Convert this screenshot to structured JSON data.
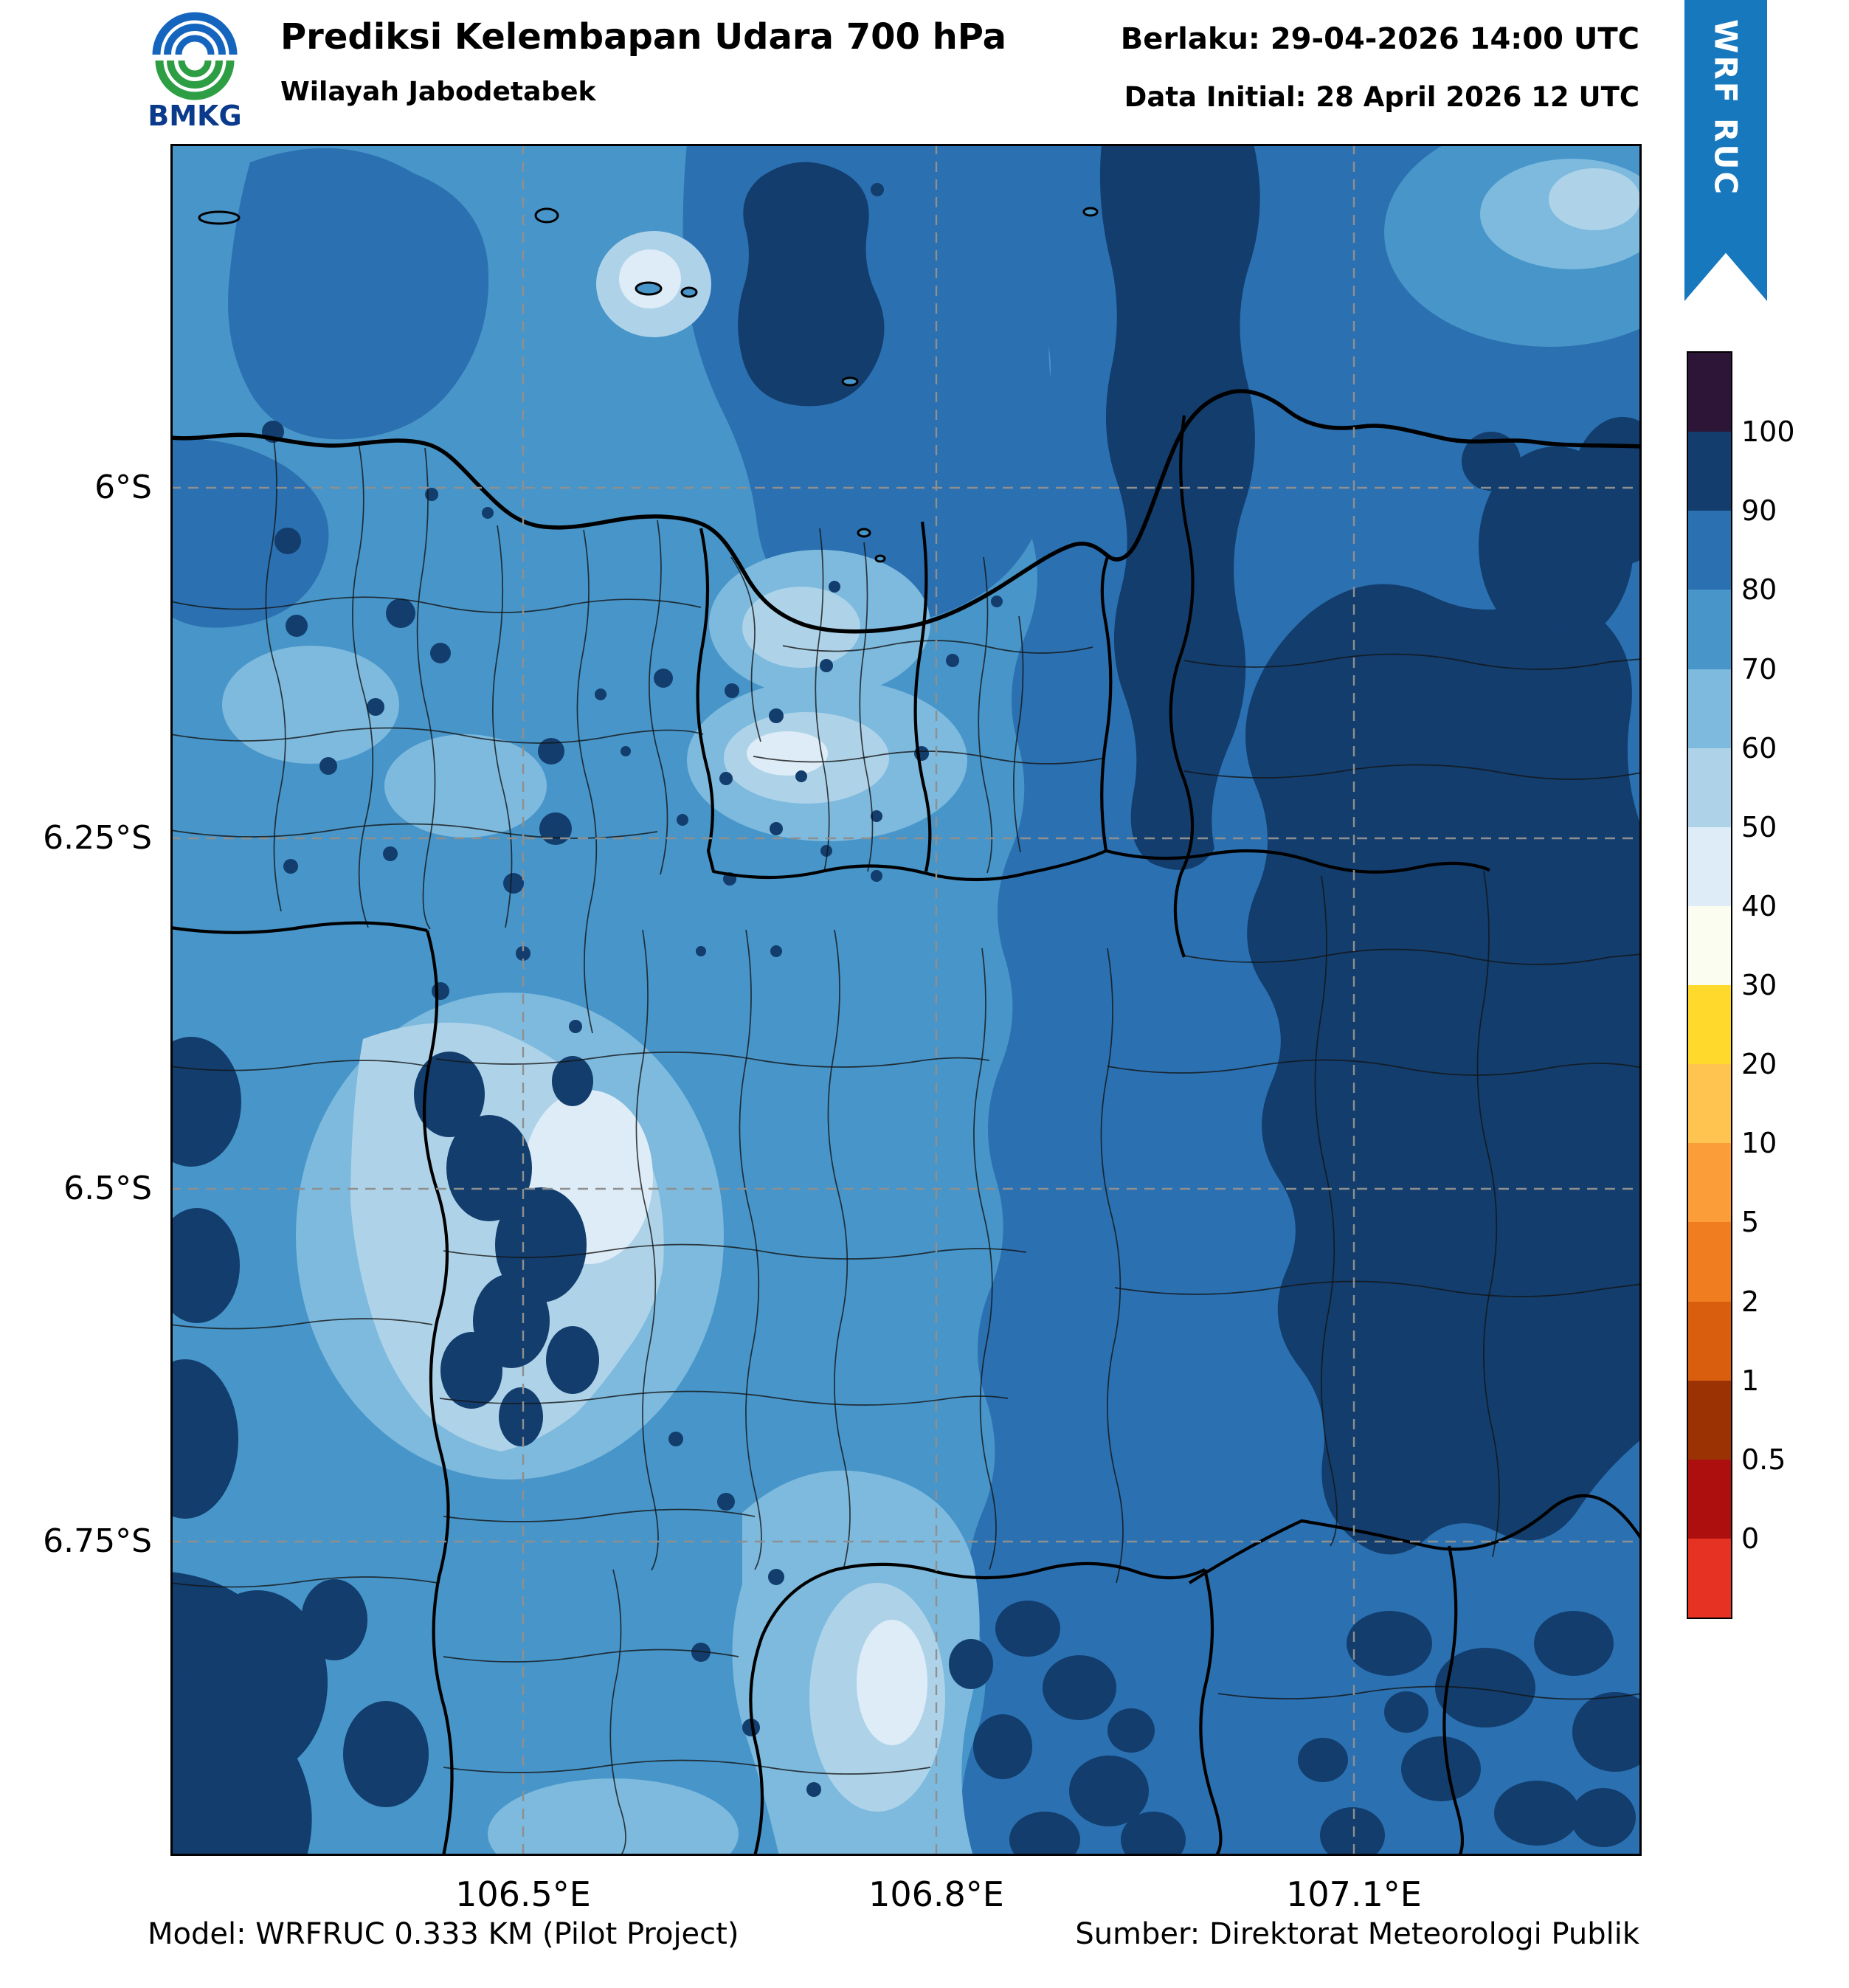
{
  "header": {
    "logo_text": "BMKG",
    "title": "Prediksi Kelembapan Udara 700 hPa",
    "subtitle": "Wilayah Jabodetabek",
    "valid_text": "Berlaku: 29-04-2026 14:00 UTC",
    "init_text": "Data Initial: 28 April 2026 12 UTC",
    "ribbon_text": "WRF RUC"
  },
  "map": {
    "x_tick_labels": [
      "106.5°E",
      "106.8°E",
      "107.1°E"
    ],
    "y_tick_labels": [
      "6°S",
      "6.25°S",
      "6.5°S",
      "6.75°S"
    ],
    "field": "Relative humidity (%) at 700 hPa, filled contours"
  },
  "colorbar": {
    "ticks_top_to_bottom": [
      "100",
      "90",
      "80",
      "70",
      "60",
      "50",
      "40",
      "30",
      "20",
      "10",
      "5",
      "2",
      "1",
      "0.5",
      "0"
    ],
    "colors_top_to_bottom": [
      "#2d1537",
      "#123d6d",
      "#2b70b1",
      "#4795c9",
      "#7dbade",
      "#aed3e9",
      "#ddecf7",
      "#fbfdf0",
      "#ffd92b",
      "#fec44f",
      "#fb9d38",
      "#f07d20",
      "#d95f0e",
      "#9a3204",
      "#ad0f0f",
      "#e63223"
    ]
  },
  "palette": {
    "f40": "#ddecf7",
    "f50": "#aed3e9",
    "f60": "#7dbade",
    "f70": "#4795c9",
    "f80": "#2b70b1",
    "f90": "#123d6d",
    "ribbon": "#1878be",
    "logo-blue": "#1565bf",
    "logo-green": "#2e9e44",
    "logo-text-color": "#0a3a8c"
  },
  "footer": {
    "model_text": "Model: WRFRUC 0.333 KM (Pilot Project)",
    "source_text": "Sumber: Direktorat Meteorologi Publik"
  }
}
